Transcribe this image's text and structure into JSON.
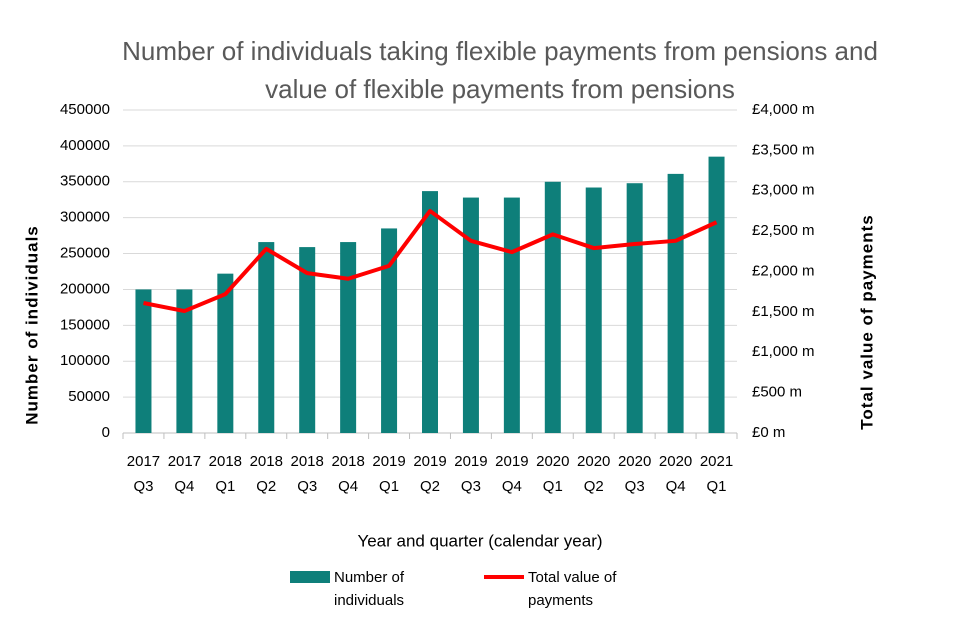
{
  "chart_data": {
    "type": "combo",
    "title": "Number of individuals taking flexible payments from pensions and value of flexible payments from pensions",
    "x_label": "Year and quarter (calendar year)",
    "y_label": "Number of individuals",
    "y2_label": "Total value of payments",
    "categories": [
      [
        "2017",
        "Q3"
      ],
      [
        "2017",
        "Q4"
      ],
      [
        "2018",
        "Q1"
      ],
      [
        "2018",
        "Q2"
      ],
      [
        "2018",
        "Q3"
      ],
      [
        "2018",
        "Q4"
      ],
      [
        "2019",
        "Q1"
      ],
      [
        "2019",
        "Q2"
      ],
      [
        "2019",
        "Q3"
      ],
      [
        "2019",
        "Q4"
      ],
      [
        "2020",
        "Q1"
      ],
      [
        "2020",
        "Q2"
      ],
      [
        "2020",
        "Q3"
      ],
      [
        "2020",
        "Q4"
      ],
      [
        "2021",
        "Q1"
      ]
    ],
    "series": [
      {
        "name": "Number of individuals",
        "type": "bar",
        "color": "#0e7f7a",
        "values": [
          200000,
          200000,
          222000,
          266000,
          259000,
          266000,
          285000,
          337000,
          328000,
          328000,
          350000,
          342000,
          348000,
          361000,
          385000
        ]
      },
      {
        "name": "Total value of payments",
        "type": "line",
        "axis": "y2",
        "color": "#ff0000",
        "values": [
          1610,
          1510,
          1720,
          2280,
          1980,
          1910,
          2070,
          2750,
          2380,
          2240,
          2460,
          2290,
          2340,
          2380,
          2610
        ]
      }
    ],
    "ylim": [
      0,
      450000
    ],
    "yticks": [
      0,
      50000,
      100000,
      150000,
      200000,
      250000,
      300000,
      350000,
      400000,
      450000
    ],
    "y2lim": [
      0,
      4000
    ],
    "y2ticks": [
      {
        "value": 0,
        "label": "£0 m"
      },
      {
        "value": 500,
        "label": "£500 m"
      },
      {
        "value": 1000,
        "label": "£1,000 m"
      },
      {
        "value": 1500,
        "label": "£1,500 m"
      },
      {
        "value": 2000,
        "label": "£2,000 m"
      },
      {
        "value": 2500,
        "label": "£2,500 m"
      },
      {
        "value": 3000,
        "label": "£3,000 m"
      },
      {
        "value": 3500,
        "label": "£3,500 m"
      },
      {
        "value": 4000,
        "label": "£4,000 m"
      }
    ],
    "grid": true,
    "legend": "bottom"
  }
}
